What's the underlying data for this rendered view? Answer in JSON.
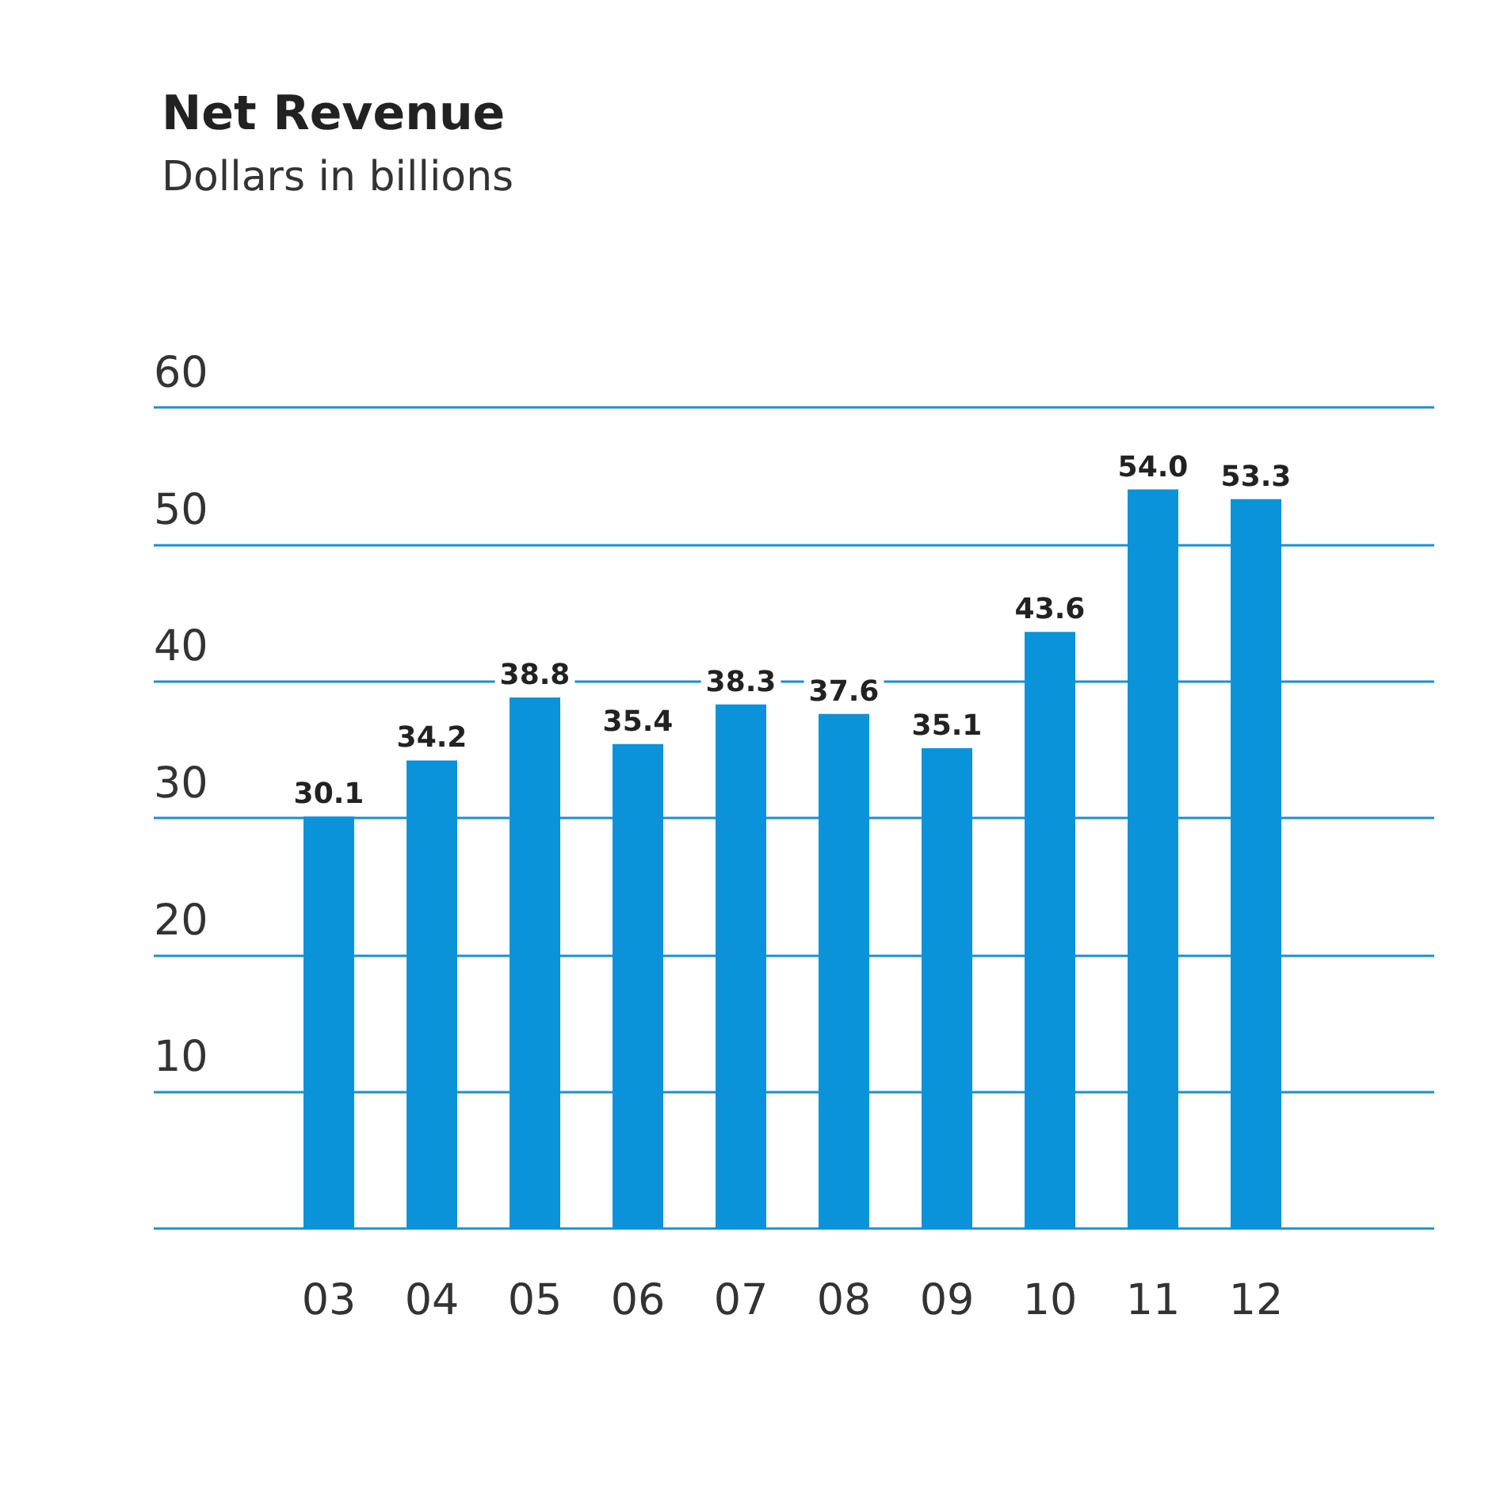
{
  "chart_data": {
    "type": "bar",
    "title": "Net Revenue",
    "subtitle": "Dollars in billions",
    "categories": [
      "03",
      "04",
      "05",
      "06",
      "07",
      "08",
      "09",
      "10",
      "11",
      "12"
    ],
    "values": [
      30.1,
      34.2,
      38.8,
      35.4,
      38.3,
      37.6,
      35.1,
      43.6,
      54.0,
      53.3
    ],
    "value_labels": [
      "30.1",
      "34.2",
      "38.8",
      "35.4",
      "38.3",
      "37.6",
      "35.1",
      "43.6",
      "54.0",
      "53.3"
    ],
    "color": "#0a93d9",
    "ylim": [
      0,
      60
    ],
    "yticks": [
      {
        "value": 0,
        "label": null
      },
      10,
      20,
      30,
      40,
      50,
      60
    ],
    "grid": "y"
  }
}
